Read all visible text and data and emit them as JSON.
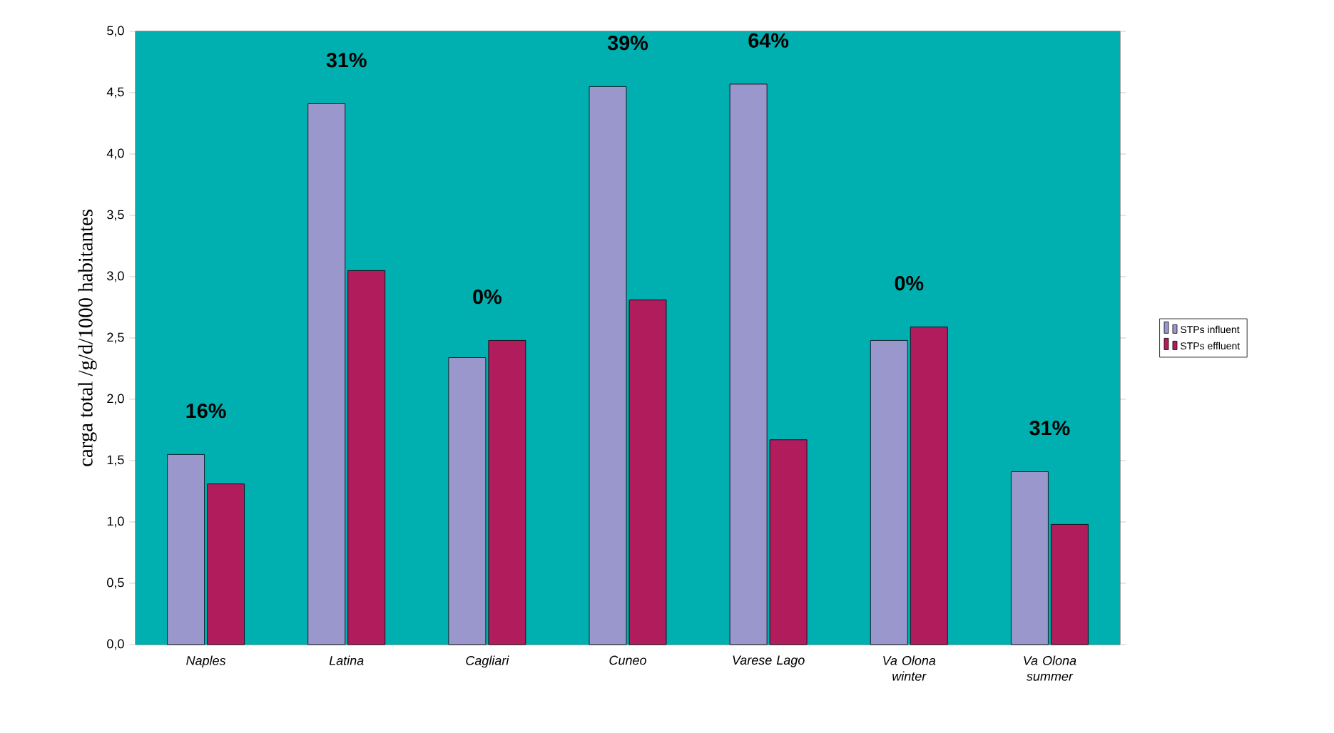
{
  "chart_data": {
    "type": "bar",
    "ylabel": "carga total /g/d/1000 habitantes",
    "categories": [
      "Naples",
      "Latina",
      "Cagliari",
      "Cuneo",
      "Varese Lago",
      "Va Olona winter",
      "Va Olona summer"
    ],
    "series": [
      {
        "name": "STPs influent",
        "color": "#9a97cc",
        "values": [
          1.55,
          4.41,
          2.34,
          4.55,
          4.57,
          2.48,
          1.41
        ]
      },
      {
        "name": "STPs effluent",
        "color": "#b01c5c",
        "values": [
          1.31,
          3.05,
          2.48,
          2.81,
          1.67,
          2.59,
          0.98
        ]
      }
    ],
    "ylim": [
      0,
      5
    ],
    "yticks": [
      {
        "value": 0,
        "label": "0,0"
      },
      {
        "value": 0.5,
        "label": "0,5"
      },
      {
        "value": 1,
        "label": "1,0"
      },
      {
        "value": 1.5,
        "label": "1,5"
      },
      {
        "value": 2,
        "label": "2,0"
      },
      {
        "value": 2.5,
        "label": "2,5"
      },
      {
        "value": 3,
        "label": "3,0"
      },
      {
        "value": 3.5,
        "label": "3,5"
      },
      {
        "value": 4,
        "label": "4,0"
      },
      {
        "value": 4.5,
        "label": "4,5"
      },
      {
        "value": 5,
        "label": "5,0"
      }
    ],
    "annotations": [
      "16%",
      "31%",
      "0%",
      "39%",
      "64%",
      "0%",
      "31%"
    ],
    "grid": false,
    "legend": "right"
  }
}
